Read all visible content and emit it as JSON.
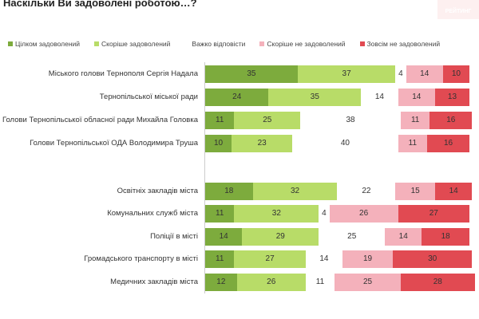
{
  "title": "Наскільки Ви задоволені роботою…?",
  "logo": "РЕЙТИНГ",
  "chart_data": {
    "type": "bar",
    "orientation": "horizontal-stacked",
    "title": "Наскільки Ви задоволені роботою…?",
    "legend_position": "top",
    "series": [
      {
        "name": "Цілком задоволений",
        "color": "#7dab3d"
      },
      {
        "name": "Скоріше задоволений",
        "color": "#b8dc68"
      },
      {
        "name": "Важко відповісти",
        "color": "#ffffff"
      },
      {
        "name": "Скоріше не задоволений",
        "color": "#f4b1bb"
      },
      {
        "name": "Зовсім не задоволений",
        "color": "#e14a52"
      }
    ],
    "groups": [
      {
        "rows": [
          {
            "label": "Міського голови Тернополя Сергія Надала",
            "values": [
              35,
              37,
              4,
              14,
              10
            ]
          },
          {
            "label": "Тернопільської міської ради",
            "values": [
              24,
              35,
              14,
              14,
              13
            ]
          },
          {
            "label": "Голови Тернопільської обласної ради Михайла Головка",
            "values": [
              11,
              25,
              38,
              11,
              16
            ]
          },
          {
            "label": "Голови Тернопільської ОДА Володимира Труша",
            "values": [
              10,
              23,
              40,
              11,
              16
            ]
          }
        ]
      },
      {
        "rows": [
          {
            "label": "Освітніх закладів міста",
            "values": [
              18,
              32,
              22,
              15,
              14
            ]
          },
          {
            "label": "Комунальних служб міста",
            "values": [
              11,
              32,
              4,
              26,
              27
            ]
          },
          {
            "label": "Поліції в місті",
            "values": [
              14,
              29,
              25,
              14,
              18
            ]
          },
          {
            "label": "Громадського транспорту в місті",
            "values": [
              11,
              27,
              14,
              19,
              30
            ]
          },
          {
            "label": "Медичних закладів міста",
            "values": [
              12,
              26,
              11,
              25,
              28
            ]
          }
        ]
      }
    ]
  }
}
